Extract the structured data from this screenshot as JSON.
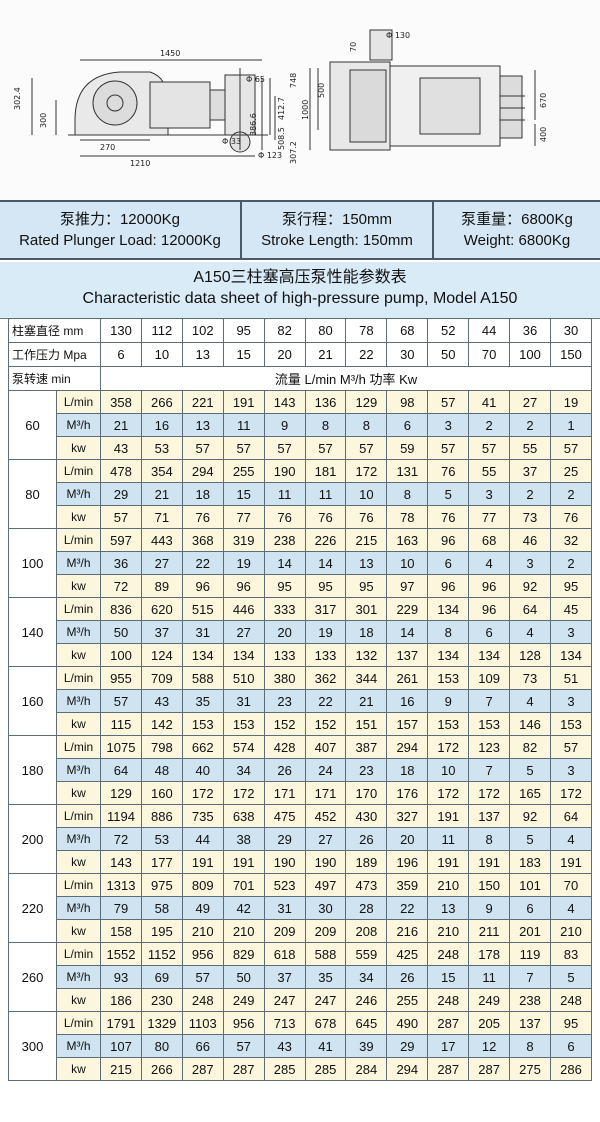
{
  "drawing": {
    "dims": {
      "d1450": "1450",
      "d302": "302.4",
      "d300": "300",
      "d270": "270",
      "d1210": "1210",
      "phi65": "Φ 65",
      "phi33": "Φ 33",
      "phi123": "Φ 123",
      "d412": "412.7",
      "d386": "386.6",
      "d508": "508.5",
      "d307": "307.2",
      "d748": "748",
      "d500": "500",
      "d1000": "1000",
      "d70": "70",
      "phi130": "Φ 130",
      "d670": "670",
      "d400": "400"
    }
  },
  "specs": [
    {
      "zh": "泵推力：12000Kg",
      "en": "Rated Plunger Load: 12000Kg"
    },
    {
      "zh": "泵行程：150mm",
      "en": "Stroke Length: 150mm"
    },
    {
      "zh": "泵重量：6800Kg",
      "en": "Weight: 6800Kg"
    }
  ],
  "title": {
    "zh": "A150三柱塞高压泵性能参数表",
    "en": "Characteristic data sheet of high-pressure pump, Model A150"
  },
  "table": {
    "diameter_label": "柱塞直径 mm",
    "diameters": [
      "130",
      "112",
      "102",
      "95",
      "82",
      "80",
      "78",
      "68",
      "52",
      "44",
      "36",
      "30"
    ],
    "pressure_label": "工作压力 Mpa",
    "pressures": [
      "6",
      "10",
      "13",
      "15",
      "20",
      "21",
      "22",
      "30",
      "50",
      "70",
      "100",
      "150"
    ],
    "speed_label": "泵转速 min",
    "flow_label": "流量 L/min  M³/h  功率 Kw",
    "unit_lmin": "L/min",
    "unit_m3h": "M³/h",
    "unit_kw": "kw",
    "groups": [
      {
        "speed": "60",
        "lmin": [
          "358",
          "266",
          "221",
          "191",
          "143",
          "136",
          "129",
          "98",
          "57",
          "41",
          "27",
          "19"
        ],
        "m3h": [
          "21",
          "16",
          "13",
          "11",
          "9",
          "8",
          "8",
          "6",
          "3",
          "2",
          "2",
          "1"
        ],
        "kw": [
          "43",
          "53",
          "57",
          "57",
          "57",
          "57",
          "57",
          "59",
          "57",
          "57",
          "55",
          "57"
        ]
      },
      {
        "speed": "80",
        "lmin": [
          "478",
          "354",
          "294",
          "255",
          "190",
          "181",
          "172",
          "131",
          "76",
          "55",
          "37",
          "25"
        ],
        "m3h": [
          "29",
          "21",
          "18",
          "15",
          "11",
          "11",
          "10",
          "8",
          "5",
          "3",
          "2",
          "2"
        ],
        "kw": [
          "57",
          "71",
          "76",
          "77",
          "76",
          "76",
          "76",
          "78",
          "76",
          "77",
          "73",
          "76"
        ]
      },
      {
        "speed": "100",
        "lmin": [
          "597",
          "443",
          "368",
          "319",
          "238",
          "226",
          "215",
          "163",
          "96",
          "68",
          "46",
          "32"
        ],
        "m3h": [
          "36",
          "27",
          "22",
          "19",
          "14",
          "14",
          "13",
          "10",
          "6",
          "4",
          "3",
          "2"
        ],
        "kw": [
          "72",
          "89",
          "96",
          "96",
          "95",
          "95",
          "95",
          "97",
          "96",
          "96",
          "92",
          "95"
        ]
      },
      {
        "speed": "140",
        "lmin": [
          "836",
          "620",
          "515",
          "446",
          "333",
          "317",
          "301",
          "229",
          "134",
          "96",
          "64",
          "45"
        ],
        "m3h": [
          "50",
          "37",
          "31",
          "27",
          "20",
          "19",
          "18",
          "14",
          "8",
          "6",
          "4",
          "3"
        ],
        "kw": [
          "100",
          "124",
          "134",
          "134",
          "133",
          "133",
          "132",
          "137",
          "134",
          "134",
          "128",
          "134"
        ]
      },
      {
        "speed": "160",
        "lmin": [
          "955",
          "709",
          "588",
          "510",
          "380",
          "362",
          "344",
          "261",
          "153",
          "109",
          "73",
          "51"
        ],
        "m3h": [
          "57",
          "43",
          "35",
          "31",
          "23",
          "22",
          "21",
          "16",
          "9",
          "7",
          "4",
          "3"
        ],
        "kw": [
          "115",
          "142",
          "153",
          "153",
          "152",
          "152",
          "151",
          "157",
          "153",
          "153",
          "146",
          "153"
        ]
      },
      {
        "speed": "180",
        "lmin": [
          "1075",
          "798",
          "662",
          "574",
          "428",
          "407",
          "387",
          "294",
          "172",
          "123",
          "82",
          "57"
        ],
        "m3h": [
          "64",
          "48",
          "40",
          "34",
          "26",
          "24",
          "23",
          "18",
          "10",
          "7",
          "5",
          "3"
        ],
        "kw": [
          "129",
          "160",
          "172",
          "172",
          "171",
          "171",
          "170",
          "176",
          "172",
          "172",
          "165",
          "172"
        ]
      },
      {
        "speed": "200",
        "lmin": [
          "1194",
          "886",
          "735",
          "638",
          "475",
          "452",
          "430",
          "327",
          "191",
          "137",
          "92",
          "64"
        ],
        "m3h": [
          "72",
          "53",
          "44",
          "38",
          "29",
          "27",
          "26",
          "20",
          "11",
          "8",
          "5",
          "4"
        ],
        "kw": [
          "143",
          "177",
          "191",
          "191",
          "190",
          "190",
          "189",
          "196",
          "191",
          "191",
          "183",
          "191"
        ]
      },
      {
        "speed": "220",
        "lmin": [
          "1313",
          "975",
          "809",
          "701",
          "523",
          "497",
          "473",
          "359",
          "210",
          "150",
          "101",
          "70"
        ],
        "m3h": [
          "79",
          "58",
          "49",
          "42",
          "31",
          "30",
          "28",
          "22",
          "13",
          "9",
          "6",
          "4"
        ],
        "kw": [
          "158",
          "195",
          "210",
          "210",
          "209",
          "209",
          "208",
          "216",
          "210",
          "211",
          "201",
          "210"
        ]
      },
      {
        "speed": "260",
        "lmin": [
          "1552",
          "1152",
          "956",
          "829",
          "618",
          "588",
          "559",
          "425",
          "248",
          "178",
          "119",
          "83"
        ],
        "m3h": [
          "93",
          "69",
          "57",
          "50",
          "37",
          "35",
          "34",
          "26",
          "15",
          "11",
          "7",
          "5"
        ],
        "kw": [
          "186",
          "230",
          "248",
          "249",
          "247",
          "247",
          "246",
          "255",
          "248",
          "249",
          "238",
          "248"
        ]
      },
      {
        "speed": "300",
        "lmin": [
          "1791",
          "1329",
          "1103",
          "956",
          "713",
          "678",
          "645",
          "490",
          "287",
          "205",
          "137",
          "95"
        ],
        "m3h": [
          "107",
          "80",
          "66",
          "57",
          "43",
          "41",
          "39",
          "29",
          "17",
          "12",
          "8",
          "6"
        ],
        "kw": [
          "215",
          "266",
          "287",
          "287",
          "285",
          "285",
          "284",
          "294",
          "287",
          "287",
          "275",
          "286"
        ]
      }
    ]
  }
}
